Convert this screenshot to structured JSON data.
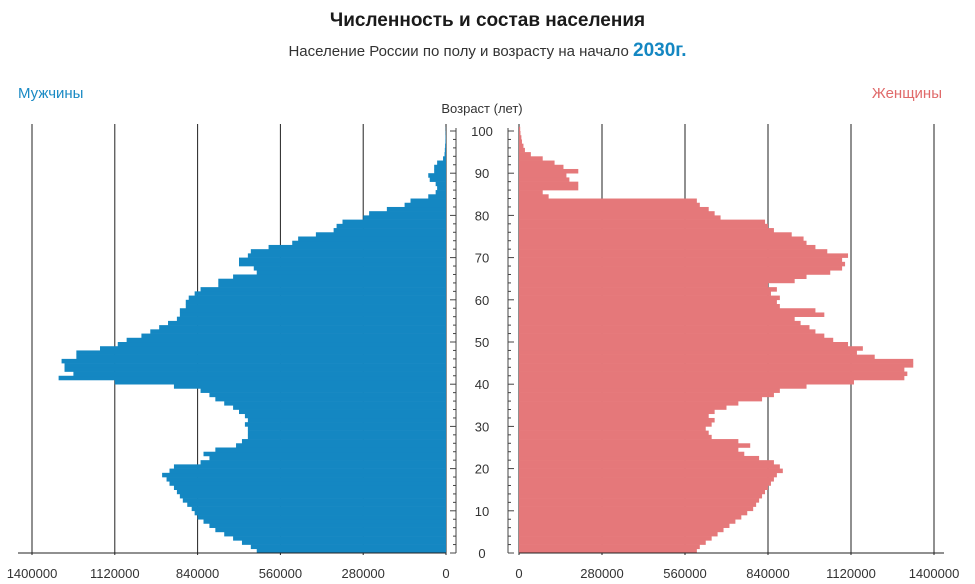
{
  "chart_data": {
    "type": "bar",
    "title": "Численность и состав населения",
    "subtitle_text": "Население России по полу и возрасту на начало",
    "subtitle_year": "2030г.",
    "y_axis_title": "Возраст (лет)",
    "left_label": "Мужчины",
    "right_label": "Женщины",
    "x_tick_labels_left": [
      "1400000",
      "1120000",
      "840000",
      "560000",
      "280000",
      "0"
    ],
    "x_tick_labels_right": [
      "0",
      "280000",
      "560000",
      "840000",
      "1120000",
      "1400000"
    ],
    "x_ticks": [
      0,
      280000,
      560000,
      840000,
      1120000,
      1400000
    ],
    "y_tick_labels": [
      "0",
      "10",
      "20",
      "30",
      "40",
      "50",
      "60",
      "70",
      "80",
      "90",
      "100"
    ],
    "y_ticks": [
      0,
      10,
      20,
      30,
      40,
      50,
      60,
      70,
      80,
      90,
      100
    ],
    "xlim": [
      0,
      1400000
    ],
    "ylim": [
      0,
      100
    ],
    "grid": true,
    "series": [
      {
        "name": "Мужчины",
        "color": "#1487c2",
        "side": "left",
        "ages": [
          0,
          1,
          2,
          3,
          4,
          5,
          6,
          7,
          8,
          9,
          10,
          11,
          12,
          13,
          14,
          15,
          16,
          17,
          18,
          19,
          20,
          21,
          22,
          23,
          24,
          25,
          26,
          27,
          28,
          29,
          30,
          31,
          32,
          33,
          34,
          35,
          36,
          37,
          38,
          39,
          40,
          41,
          42,
          43,
          44,
          45,
          46,
          47,
          48,
          49,
          50,
          51,
          52,
          53,
          54,
          55,
          56,
          57,
          58,
          59,
          60,
          61,
          62,
          63,
          64,
          65,
          66,
          67,
          68,
          69,
          70,
          71,
          72,
          73,
          74,
          75,
          76,
          77,
          78,
          79,
          80,
          81,
          82,
          83,
          84,
          85,
          86,
          87,
          88,
          89,
          90,
          91,
          92,
          93,
          94,
          95,
          96,
          97,
          98,
          99,
          100
        ],
        "values": [
          640000,
          660000,
          690000,
          720000,
          750000,
          780000,
          800000,
          820000,
          840000,
          850000,
          860000,
          875000,
          890000,
          900000,
          910000,
          920000,
          935000,
          945000,
          960000,
          935000,
          920000,
          830000,
          800000,
          820000,
          780000,
          710000,
          690000,
          670000,
          670000,
          670000,
          680000,
          670000,
          680000,
          700000,
          720000,
          750000,
          780000,
          800000,
          830000,
          920000,
          1120000,
          1310000,
          1260000,
          1290000,
          1290000,
          1300000,
          1250000,
          1250000,
          1170000,
          1110000,
          1080000,
          1030000,
          1000000,
          970000,
          940000,
          910000,
          900000,
          900000,
          880000,
          880000,
          870000,
          850000,
          830000,
          770000,
          770000,
          720000,
          640000,
          650000,
          700000,
          700000,
          670000,
          660000,
          600000,
          520000,
          500000,
          440000,
          380000,
          370000,
          350000,
          280000,
          260000,
          200000,
          140000,
          120000,
          60000,
          35000,
          30000,
          35000,
          55000,
          60000,
          40000,
          40000,
          30000,
          10000,
          5000,
          4000,
          3000,
          2000,
          1500,
          1000,
          500
        ]
      },
      {
        "name": "Женщины",
        "color": "#e5787a",
        "side": "right",
        "ages": [
          0,
          1,
          2,
          3,
          4,
          5,
          6,
          7,
          8,
          9,
          10,
          11,
          12,
          13,
          14,
          15,
          16,
          17,
          18,
          19,
          20,
          21,
          22,
          23,
          24,
          25,
          26,
          27,
          28,
          29,
          30,
          31,
          32,
          33,
          34,
          35,
          36,
          37,
          38,
          39,
          40,
          41,
          42,
          43,
          44,
          45,
          46,
          47,
          48,
          49,
          50,
          51,
          52,
          53,
          54,
          55,
          56,
          57,
          58,
          59,
          60,
          61,
          62,
          63,
          64,
          65,
          66,
          67,
          68,
          69,
          70,
          71,
          72,
          73,
          74,
          75,
          76,
          77,
          78,
          79,
          80,
          81,
          82,
          83,
          84,
          85,
          86,
          87,
          88,
          89,
          90,
          91,
          92,
          93,
          94,
          95,
          96,
          97,
          98,
          99,
          100
        ],
        "values": [
          600000,
          610000,
          630000,
          650000,
          670000,
          690000,
          710000,
          730000,
          750000,
          770000,
          790000,
          800000,
          810000,
          820000,
          830000,
          840000,
          850000,
          860000,
          870000,
          890000,
          880000,
          860000,
          810000,
          760000,
          740000,
          780000,
          740000,
          650000,
          640000,
          630000,
          650000,
          660000,
          640000,
          660000,
          700000,
          740000,
          820000,
          860000,
          880000,
          970000,
          1130000,
          1300000,
          1310000,
          1300000,
          1330000,
          1330000,
          1200000,
          1140000,
          1160000,
          1110000,
          1060000,
          1030000,
          1000000,
          980000,
          950000,
          930000,
          1030000,
          1000000,
          880000,
          870000,
          880000,
          850000,
          870000,
          840000,
          930000,
          970000,
          1050000,
          1090000,
          1100000,
          1090000,
          1110000,
          1040000,
          1000000,
          970000,
          960000,
          920000,
          860000,
          840000,
          830000,
          680000,
          660000,
          640000,
          610000,
          600000,
          100000,
          80000,
          200000,
          200000,
          170000,
          160000,
          200000,
          150000,
          120000,
          80000,
          40000,
          20000,
          15000,
          10000,
          8000,
          5000,
          4000
        ]
      }
    ]
  }
}
